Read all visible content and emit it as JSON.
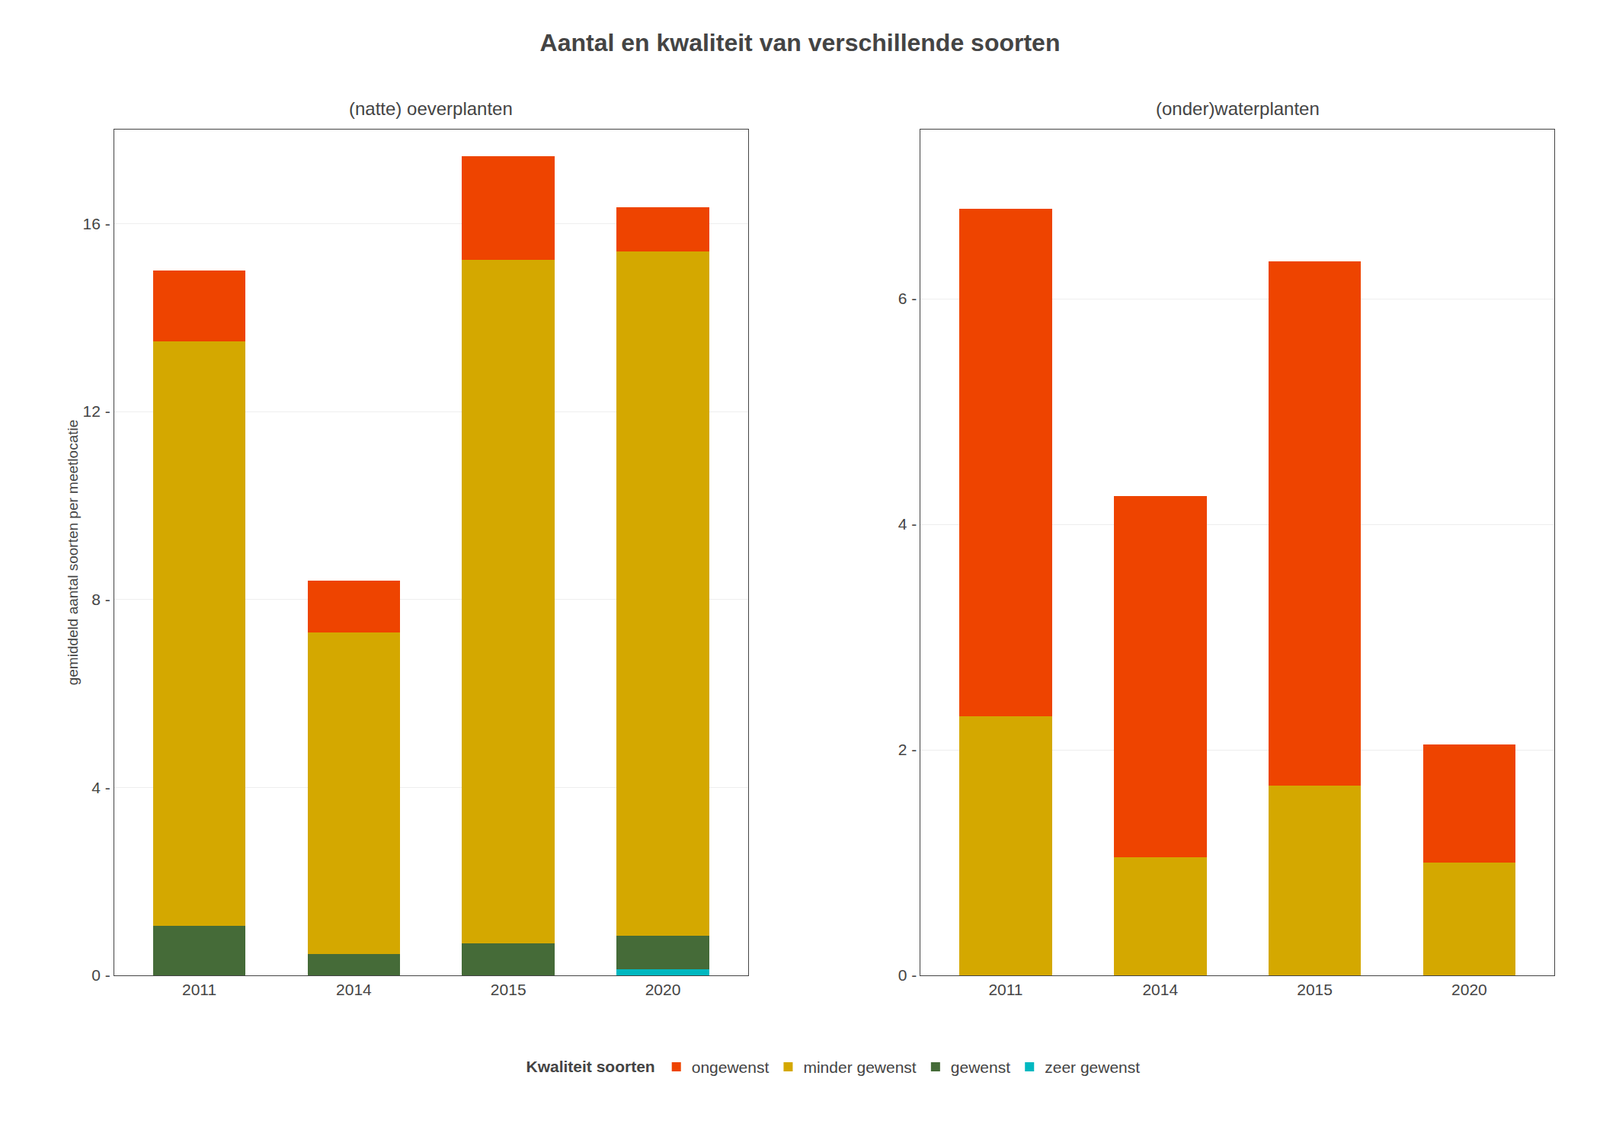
{
  "title": "Aantal en kwaliteit van verschillende soorten",
  "legend_title": "Kwaliteit soorten",
  "legend": "bottom",
  "chart_data": [
    {
      "type": "bar",
      "stacked": true,
      "grid": true,
      "subtitle": "(natte) oeverplanten",
      "ylabel": "gemiddeld aantal soorten per meetlocatie",
      "categories": [
        "2011",
        "2014",
        "2015",
        "2020"
      ],
      "series": [
        {
          "name": "zeer gewenst",
          "color": "#00B8C0",
          "values": [
            0.0,
            0.0,
            0.0,
            0.13
          ]
        },
        {
          "name": "gewenst",
          "color": "#456B38",
          "values": [
            1.05,
            0.45,
            0.68,
            0.72
          ]
        },
        {
          "name": "minder gewenst",
          "color": "#D4A800",
          "values": [
            12.45,
            6.85,
            14.55,
            14.55
          ]
        },
        {
          "name": "ongewenst",
          "color": "#EE4400",
          "values": [
            1.5,
            1.1,
            2.2,
            0.95
          ]
        }
      ],
      "ylim": [
        0,
        18
      ],
      "yticks": [
        {
          "value": 0,
          "label": "0 -"
        },
        {
          "value": 4,
          "label": "4 -"
        },
        {
          "value": 8,
          "label": "8 -"
        },
        {
          "value": 12,
          "label": "12 -"
        },
        {
          "value": 16,
          "label": "16 -"
        }
      ]
    },
    {
      "type": "bar",
      "stacked": true,
      "grid": true,
      "subtitle": "(onder)waterplanten",
      "categories": [
        "2011",
        "2014",
        "2015",
        "2020"
      ],
      "series": [
        {
          "name": "zeer gewenst",
          "color": "#00B8C0",
          "values": [
            0.0,
            0.0,
            0.0,
            0.0
          ]
        },
        {
          "name": "gewenst",
          "color": "#456B38",
          "values": [
            0.0,
            0.0,
            0.0,
            0.0
          ]
        },
        {
          "name": "minder gewenst",
          "color": "#D4A800",
          "values": [
            2.3,
            1.05,
            1.68,
            1.0
          ]
        },
        {
          "name": "ongewenst",
          "color": "#EE4400",
          "values": [
            4.5,
            3.2,
            4.65,
            1.05
          ]
        }
      ],
      "ylim": [
        0,
        7.5
      ],
      "yticks": [
        {
          "value": 0,
          "label": "0 -"
        },
        {
          "value": 2,
          "label": "2 -"
        },
        {
          "value": 4,
          "label": "4 -"
        },
        {
          "value": 6,
          "label": "6 -"
        }
      ]
    }
  ]
}
